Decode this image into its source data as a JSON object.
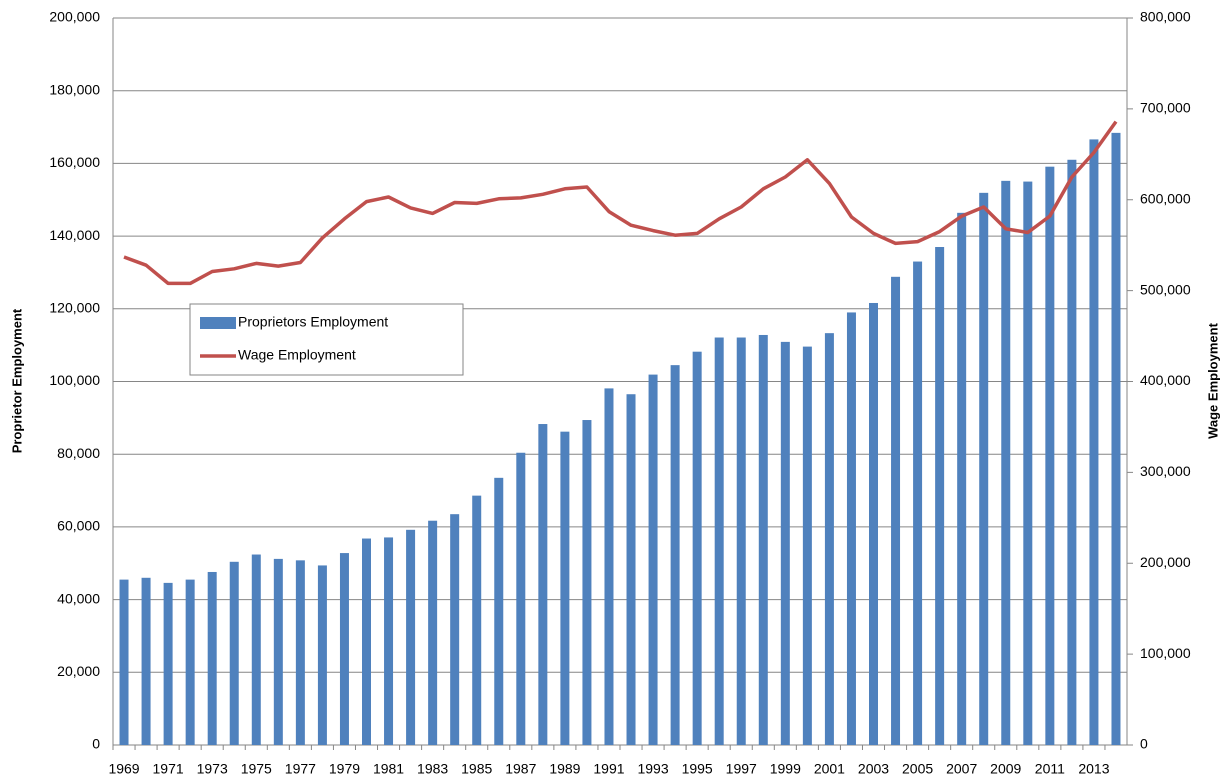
{
  "chart_data": {
    "type": "bar-line",
    "categories": [
      "1969",
      null,
      "1971",
      null,
      "1973",
      null,
      "1975",
      null,
      "1977",
      null,
      "1979",
      null,
      "1981",
      null,
      "1983",
      null,
      "1985",
      null,
      "1987",
      null,
      "1989",
      null,
      "1991",
      null,
      "1993",
      null,
      "1995",
      null,
      "1997",
      null,
      "1999",
      null,
      "2001",
      null,
      "2003",
      null,
      "2005",
      null,
      "2007",
      null,
      "2009",
      null,
      "2011",
      null,
      "2013",
      null
    ],
    "series": [
      {
        "name": "Proprietors Employment",
        "type": "bar",
        "color": "#4f81bd",
        "values": [
          45500,
          46000,
          44600,
          45500,
          47600,
          50400,
          52400,
          51200,
          50800,
          49400,
          52800,
          56800,
          57100,
          59200,
          61700,
          63500,
          68600,
          73500,
          80400,
          88300,
          86200,
          89400,
          98100,
          96500,
          101900,
          104500,
          108200,
          112100,
          112100,
          112800,
          110900,
          109600,
          113300,
          119000,
          121600,
          128800,
          133000,
          137000,
          146400,
          151900,
          155200,
          155000,
          159100,
          161000,
          166600,
          168400
        ]
      },
      {
        "name": "Wage Employment",
        "type": "line",
        "axis": "y2",
        "color": "#c0504d",
        "values": [
          537000,
          528000,
          508000,
          508000,
          521000,
          524000,
          530000,
          527000,
          531000,
          558000,
          579000,
          598000,
          603000,
          591000,
          585000,
          597000,
          596000,
          601000,
          602000,
          606000,
          612000,
          614000,
          587000,
          572000,
          566000,
          561000,
          563000,
          579000,
          592000,
          612000,
          625000,
          644000,
          618000,
          581000,
          563000,
          552000,
          554000,
          565000,
          582000,
          592000,
          568000,
          564000,
          582000,
          625000,
          652000,
          686000
        ]
      }
    ],
    "ylabel": "Proprietor Employment",
    "y2label": "Wage Employment",
    "ylim": [
      0,
      200000
    ],
    "yticks": [
      0,
      {
        "value": 20000,
        "label": "20,000"
      },
      {
        "value": 40000,
        "label": "40,000"
      },
      {
        "value": 60000,
        "label": "60,000"
      },
      {
        "value": 80000,
        "label": "80,000"
      },
      {
        "value": 100000,
        "label": "100,000"
      },
      {
        "value": 120000,
        "label": "120,000"
      },
      {
        "value": 140000,
        "label": "140,000"
      },
      {
        "value": 160000,
        "label": "160,000"
      },
      {
        "value": 180000,
        "label": "180,000"
      },
      {
        "value": 200000,
        "label": "200,000"
      }
    ],
    "y2lim": [
      0,
      800000
    ],
    "y2ticks": [
      0,
      {
        "value": 100000,
        "label": "100,000"
      },
      {
        "value": 200000,
        "label": "200,000"
      },
      {
        "value": 300000,
        "label": "300,000"
      },
      {
        "value": 400000,
        "label": "400,000"
      },
      {
        "value": 500000,
        "label": "500,000"
      },
      {
        "value": 600000,
        "label": "600,000"
      },
      {
        "value": 700000,
        "label": "700,000"
      },
      {
        "value": 800000,
        "label": "800,000"
      }
    ],
    "grid": true,
    "legend": "left"
  }
}
